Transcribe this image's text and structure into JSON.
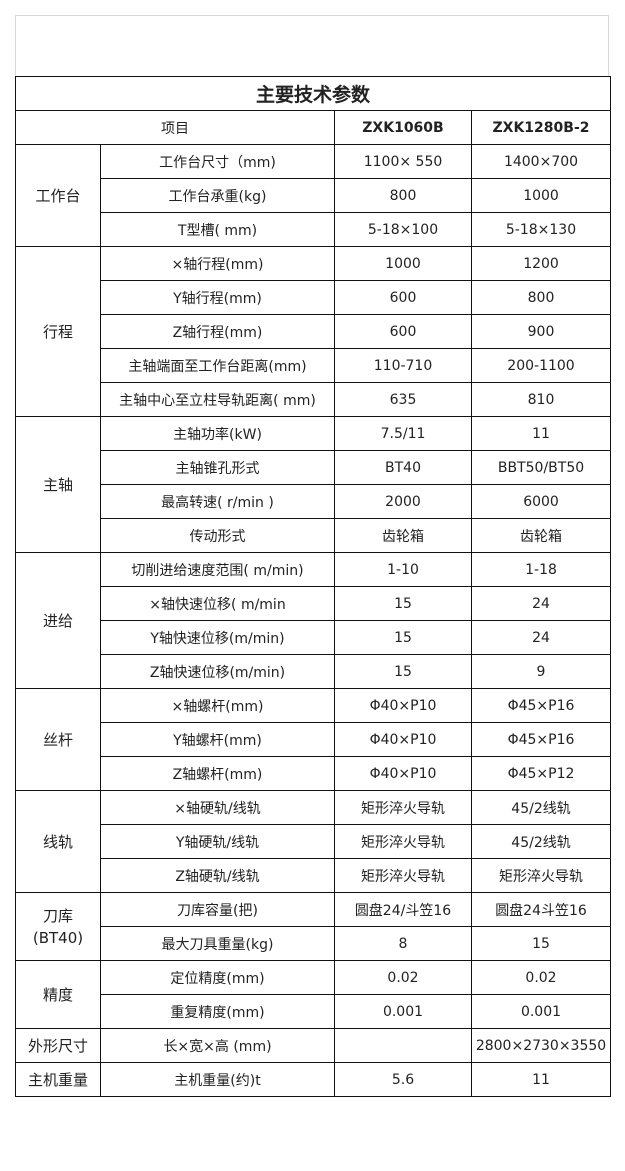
{
  "title": "主要技术参数",
  "header": {
    "item": "项目",
    "models": [
      "ZXK1060B",
      "ZXK1280B-2"
    ]
  },
  "groups": [
    {
      "name": "工作台",
      "rows": [
        {
          "item": "工作台尺寸（mm)",
          "v1": "1100× 550",
          "v2": "1400×700"
        },
        {
          "item": "工作台承重(kg)",
          "v1": "800",
          "v2": "1000"
        },
        {
          "item": "T型槽( mm)",
          "v1": "5-18×100",
          "v2": "5-18×130"
        }
      ]
    },
    {
      "name": "行程",
      "rows": [
        {
          "item": "×轴行程(mm)",
          "v1": "1000",
          "v2": "1200"
        },
        {
          "item": "Y轴行程(mm)",
          "v1": "600",
          "v2": "800"
        },
        {
          "item": "Z轴行程(mm)",
          "v1": "600",
          "v2": "900"
        },
        {
          "item": "主轴端面至工作台距离(mm)",
          "v1": "110-710",
          "v2": "200-1100"
        },
        {
          "item": "主轴中心至立柱导轨距离( mm)",
          "v1": "635",
          "v2": "810"
        }
      ]
    },
    {
      "name": "主轴",
      "rows": [
        {
          "item": "主轴功率(kW)",
          "v1": "7.5/11",
          "v2": "11"
        },
        {
          "item": "主轴锥孔形式",
          "v1": "BT40",
          "v2": "BBT50/BT50"
        },
        {
          "item": "最高转速( r/min )",
          "v1": "2000",
          "v2": "6000"
        },
        {
          "item": "传动形式",
          "v1": "齿轮箱",
          "v2": "齿轮箱"
        }
      ]
    },
    {
      "name": "进给",
      "rows": [
        {
          "item": "切削进给速度范围( m/min)",
          "v1": "1-10",
          "v2": "1-18"
        },
        {
          "item": "×轴快速位移( m/min",
          "v1": "15",
          "v2": "24"
        },
        {
          "item": "Y轴快速位移(m/min)",
          "v1": "15",
          "v2": "24"
        },
        {
          "item": "Z轴快速位移(m/min)",
          "v1": "15",
          "v2": "9"
        }
      ]
    },
    {
      "name": "丝杆",
      "rows": [
        {
          "item": "×轴螺杆(mm)",
          "v1": "Φ40×P10",
          "v2": "Φ45×P16"
        },
        {
          "item": "Y轴螺杆(mm)",
          "v1": "Φ40×P10",
          "v2": "Φ45×P16"
        },
        {
          "item": "Z轴螺杆(mm)",
          "v1": "Φ40×P10",
          "v2": "Φ45×P12"
        }
      ]
    },
    {
      "name": "线轨",
      "rows": [
        {
          "item": "×轴硬轨/线轨",
          "v1": "矩形淬火导轨",
          "v2": "45/2线轨"
        },
        {
          "item": "Y轴硬轨/线轨",
          "v1": "矩形淬火导轨",
          "v2": "45/2线轨"
        },
        {
          "item": "Z轴硬轨/线轨",
          "v1": "矩形淬火导轨",
          "v2": "矩形淬火导轨"
        }
      ]
    },
    {
      "name": "刀库",
      "sub": "(BT40)",
      "rows": [
        {
          "item": "刀库容量(把)",
          "v1": "圆盘24/斗笠16",
          "v2": "圆盘24斗笠16"
        },
        {
          "item": "最大刀具重量(kg)",
          "v1": "8",
          "v2": "15"
        }
      ]
    },
    {
      "name": "精度",
      "rows": [
        {
          "item": "定位精度(mm)",
          "v1": "0.02",
          "v2": "0.02"
        },
        {
          "item": "重复精度(mm)",
          "v1": "0.001",
          "v2": "0.001"
        }
      ]
    },
    {
      "name": "外形尺寸",
      "rows": [
        {
          "item": "长×宽×高 (mm)",
          "v1": "",
          "v2": "2800×2730×3550"
        }
      ]
    },
    {
      "name": "主机重量",
      "rows": [
        {
          "item": "主机重量(约)t",
          "v1": "5.6",
          "v2": "11"
        }
      ]
    }
  ]
}
